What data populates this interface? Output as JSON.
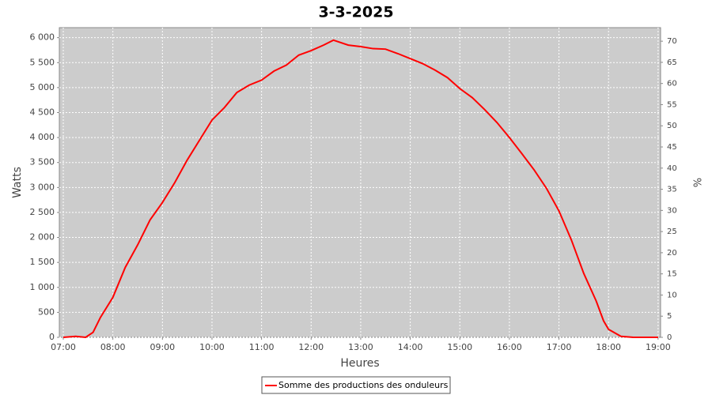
{
  "chart_data": {
    "type": "line",
    "title": "3-3-2025",
    "x_label": "Heures",
    "y_label": "Watts",
    "y2_label": "%",
    "x": [
      7.0,
      7.25,
      7.45,
      7.6,
      7.75,
      8.0,
      8.25,
      8.5,
      8.75,
      9.0,
      9.25,
      9.5,
      9.75,
      10.0,
      10.25,
      10.5,
      10.75,
      11.0,
      11.25,
      11.5,
      11.75,
      12.0,
      12.25,
      12.45,
      12.75,
      13.0,
      13.25,
      13.5,
      13.75,
      14.0,
      14.25,
      14.5,
      14.75,
      15.0,
      15.25,
      15.5,
      15.75,
      16.0,
      16.25,
      16.5,
      16.75,
      17.0,
      17.25,
      17.5,
      17.75,
      17.9,
      18.0,
      18.25,
      18.5,
      19.0
    ],
    "series": [
      {
        "name": "Somme des productions des onduleurs",
        "color": "#ff0000",
        "values": [
          0,
          20,
          0,
          100,
          400,
          800,
          1400,
          1850,
          2350,
          2700,
          3100,
          3550,
          3950,
          4350,
          4600,
          4900,
          5050,
          5150,
          5330,
          5450,
          5650,
          5740,
          5850,
          5950,
          5850,
          5820,
          5780,
          5770,
          5680,
          5580,
          5480,
          5350,
          5200,
          4980,
          4800,
          4560,
          4300,
          4000,
          3680,
          3350,
          2980,
          2530,
          1950,
          1280,
          730,
          330,
          160,
          20,
          0,
          0
        ]
      }
    ],
    "xlim": [
      6.92,
      19.05
    ],
    "ylim": [
      0,
      6200
    ],
    "y2lim": [
      0,
      73.2
    ],
    "xticks": [
      {
        "value": 7,
        "label": "07:00"
      },
      {
        "value": 8,
        "label": "08:00"
      },
      {
        "value": 9,
        "label": "09:00"
      },
      {
        "value": 10,
        "label": "10:00"
      },
      {
        "value": 11,
        "label": "11:00"
      },
      {
        "value": 12,
        "label": "12:00"
      },
      {
        "value": 13,
        "label": "13:00"
      },
      {
        "value": 14,
        "label": "14:00"
      },
      {
        "value": 15,
        "label": "15:00"
      },
      {
        "value": 16,
        "label": "16:00"
      },
      {
        "value": 17,
        "label": "17:00"
      },
      {
        "value": 18,
        "label": "18:00"
      },
      {
        "value": 19,
        "label": "19:00"
      }
    ],
    "yticks": [
      0,
      500,
      {
        "value": 1000,
        "label": "1 000"
      },
      {
        "value": 1500,
        "label": "1 500"
      },
      {
        "value": 2000,
        "label": "2 000"
      },
      {
        "value": 2500,
        "label": "2 500"
      },
      {
        "value": 3000,
        "label": "3 000"
      },
      {
        "value": 3500,
        "label": "3 500"
      },
      {
        "value": 4000,
        "label": "4 000"
      },
      {
        "value": 4500,
        "label": "4 500"
      },
      {
        "value": 5000,
        "label": "5 000"
      },
      {
        "value": 5500,
        "label": "5 500"
      },
      {
        "value": 6000,
        "label": "6 000"
      }
    ],
    "y2ticks": [
      0,
      5,
      10,
      15,
      20,
      25,
      30,
      35,
      40,
      45,
      50,
      55,
      60,
      65,
      70
    ],
    "grid": true,
    "legend": "bottom"
  }
}
